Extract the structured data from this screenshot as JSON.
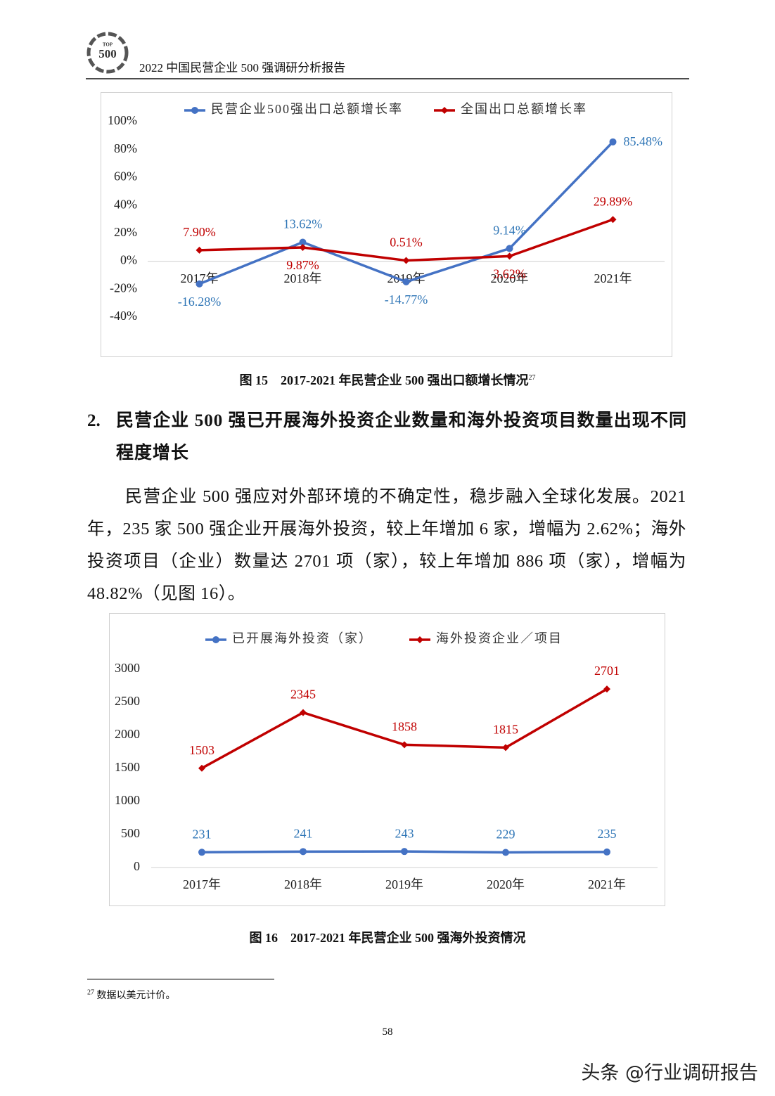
{
  "header": {
    "logo": {
      "top": "TOP",
      "number": "500"
    },
    "title": "2022 中国民营企业 500 强调研分析报告"
  },
  "chart_data": [
    {
      "type": "line",
      "categories": [
        "2017年",
        "2018年",
        "2019年",
        "2020年",
        "2021年"
      ],
      "series": [
        {
          "name": "民营企业500强出口总额增长率",
          "color": "#4472c4",
          "label_color": "#2e75b6",
          "marker": "circle",
          "values": [
            -16.28,
            13.62,
            -14.77,
            9.14,
            85.48
          ],
          "value_labels": [
            "-16.28%",
            "13.62%",
            "-14.77%",
            "9.14%",
            "85.48%"
          ]
        },
        {
          "name": "全国出口总额增长率",
          "color": "#c00000",
          "label_color": "#c00000",
          "marker": "diamond",
          "values": [
            7.9,
            9.87,
            0.51,
            3.62,
            29.89
          ],
          "value_labels": [
            "7.90%",
            "9.87%",
            "0.51%",
            "3.62%",
            "29.89%"
          ]
        }
      ],
      "ylim": [
        -40,
        100
      ],
      "yticks": [
        {
          "value": -40,
          "label": "-40%"
        },
        {
          "value": -20,
          "label": "-20%"
        },
        {
          "value": 0,
          "label": "0%"
        },
        {
          "value": 20,
          "label": "20%"
        },
        {
          "value": 40,
          "label": "40%"
        },
        {
          "value": 60,
          "label": "60%"
        },
        {
          "value": 80,
          "label": "80%"
        },
        {
          "value": 100,
          "label": "100%"
        }
      ],
      "grid": false,
      "legend": "top"
    },
    {
      "type": "line",
      "categories": [
        "2017年",
        "2018年",
        "2019年",
        "2020年",
        "2021年"
      ],
      "series": [
        {
          "name": "已开展海外投资（家）",
          "color": "#4472c4",
          "label_color": "#2e75b6",
          "marker": "circle",
          "values": [
            231,
            241,
            243,
            229,
            235
          ]
        },
        {
          "name": "海外投资企业／项目",
          "color": "#c00000",
          "label_color": "#c00000",
          "marker": "diamond",
          "values": [
            1503,
            2345,
            1858,
            1815,
            2701
          ]
        }
      ],
      "ylim": [
        0,
        3000
      ],
      "yticks": [
        0,
        500,
        1000,
        1500,
        2000,
        2500,
        3000
      ],
      "grid": false,
      "legend": "top"
    }
  ],
  "figure15": {
    "caption": "图 15　2017-2021 年民营企业 500 强出口额增长情况",
    "note_ref": "27"
  },
  "heading": {
    "number": "2.",
    "text": "民营企业 500 强已开展海外投资企业数量和海外投资项目数量出现不同程度增长"
  },
  "paragraph": "民营企业 500 强应对外部环境的不确定性，稳步融入全球化发展。2021 年，235 家 500 强企业开展海外投资，较上年增加 6 家，增幅为 2.62%；海外投资项目（企业）数量达 2701 项（家），较上年增加 886 项（家），增幅为 48.82%（见图 16）。",
  "figure16": {
    "caption": "图 16　2017-2021 年民营企业 500 强海外投资情况"
  },
  "footnote": {
    "number": "27",
    "text": "数据以美元计价。"
  },
  "page_number": "58",
  "watermark": "头条 @行业调研报告"
}
